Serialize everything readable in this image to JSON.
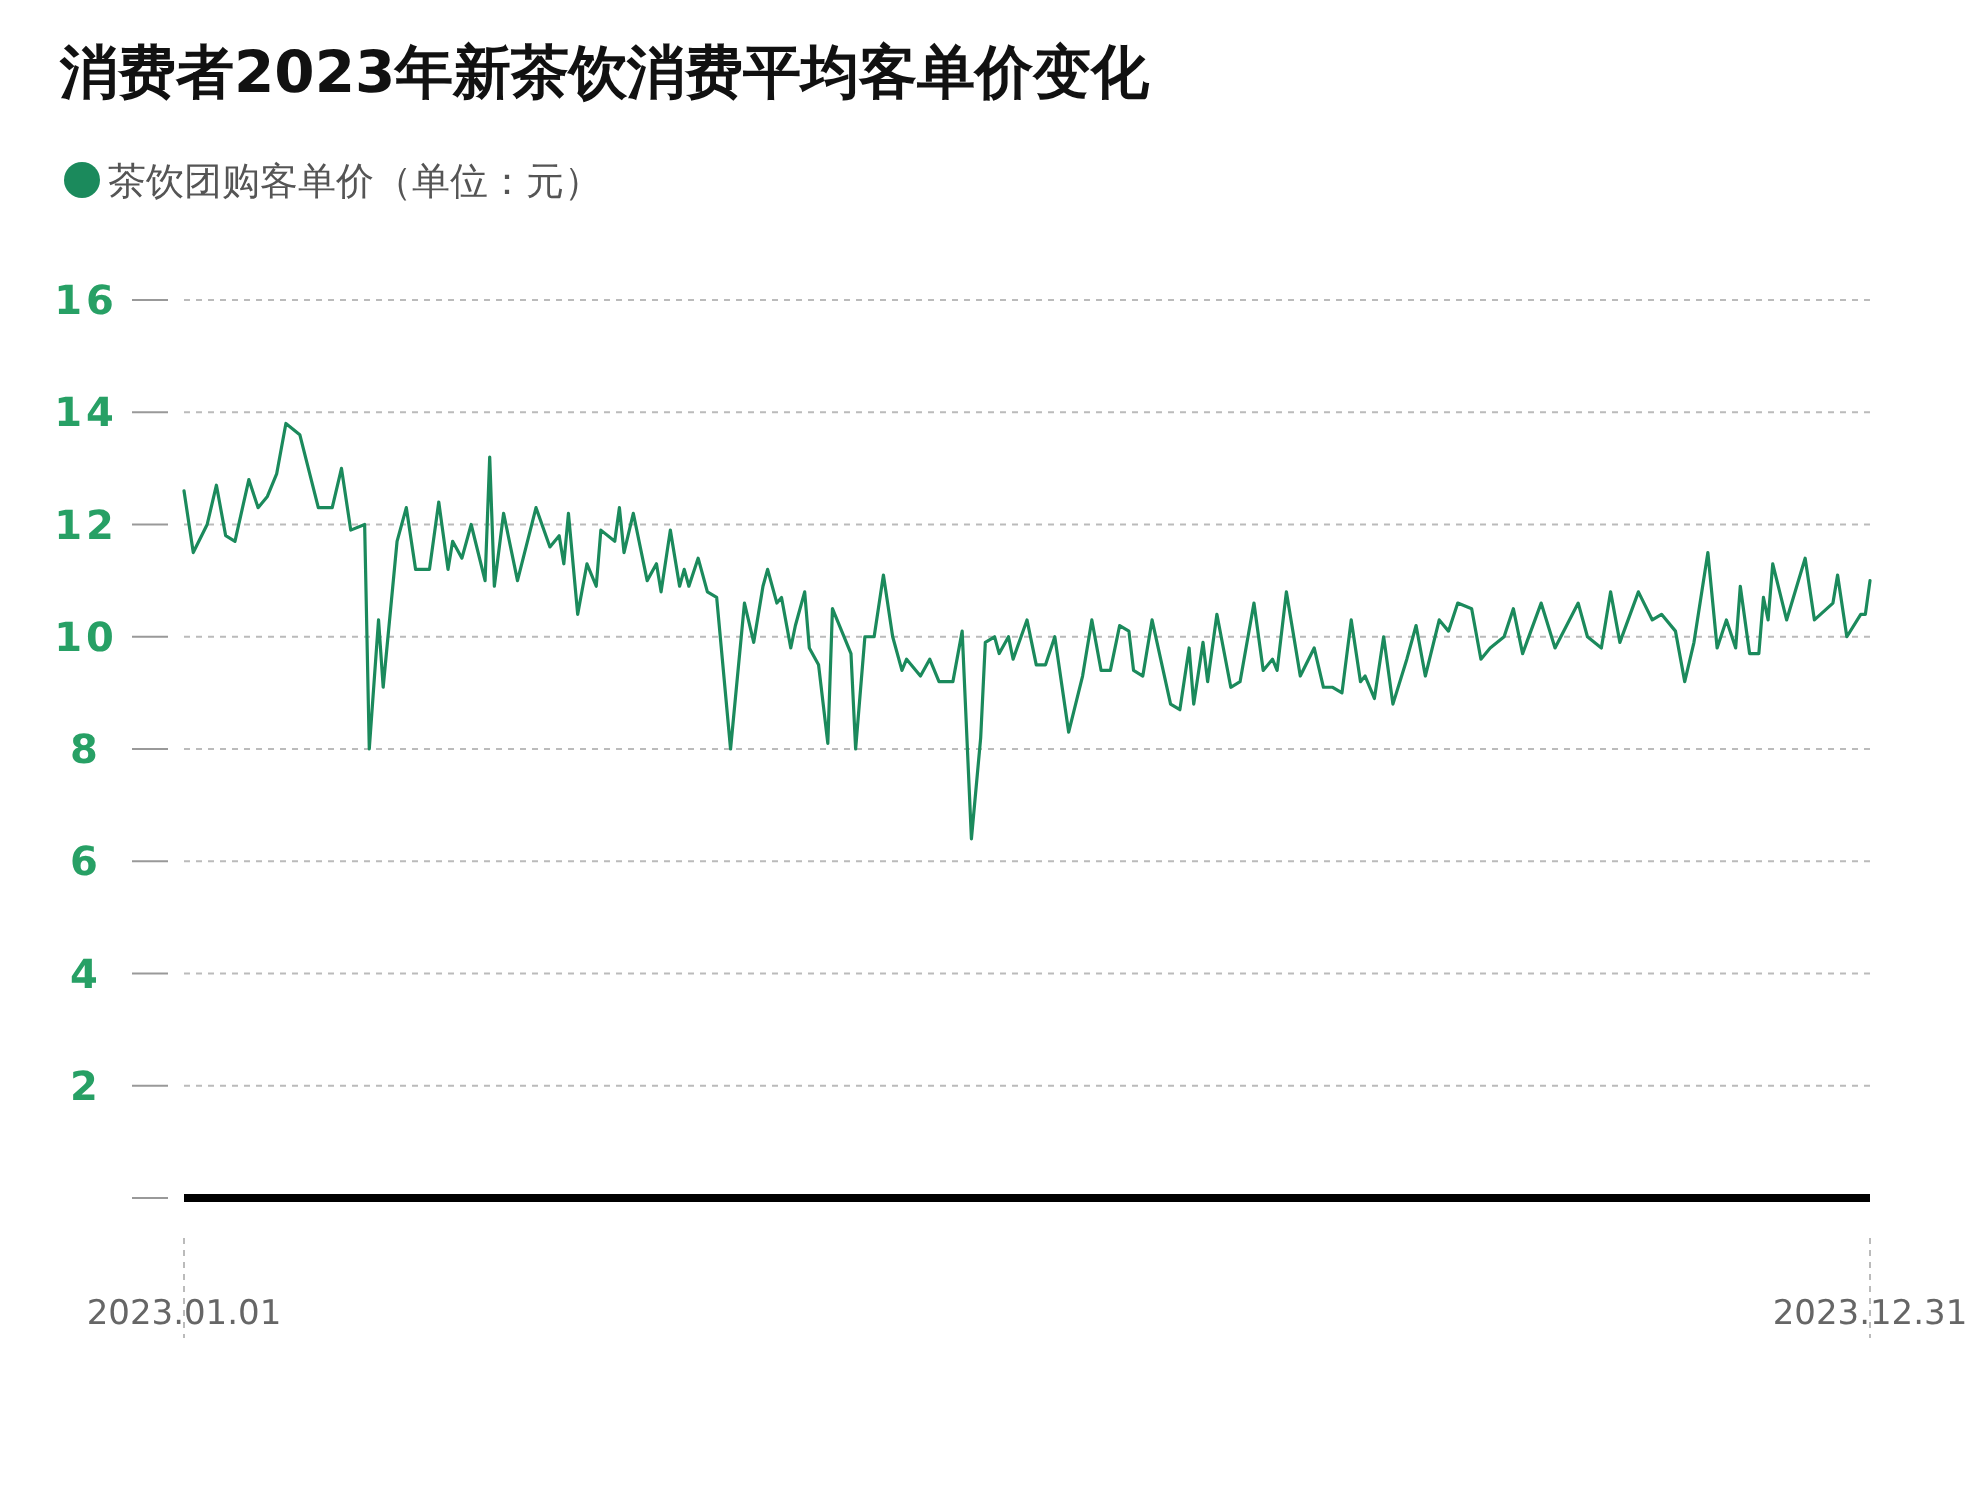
{
  "chart_data": {
    "type": "line",
    "title": "消费者2023年新茶饮消费平均客单价变化",
    "legend": "top left",
    "grid": "y",
    "ylim": [
      0,
      16
    ],
    "yticks": [
      {
        "value": 0,
        "label": null
      },
      2,
      4,
      6,
      8,
      10,
      12,
      14,
      16
    ],
    "xlim": [
      "2023-01-01",
      "2023-12-31"
    ],
    "xticks": [
      {
        "value": "2023-01-01",
        "label": "2023.01.01"
      },
      {
        "value": "2023-12-31",
        "label": "2023.12.31"
      }
    ],
    "x": [
      "2023-01-01",
      "2023-01-03",
      "2023-01-06",
      "2023-01-08",
      "2023-01-10",
      "2023-01-12",
      "2023-01-15",
      "2023-01-17",
      "2023-01-19",
      "2023-01-21",
      "2023-01-23",
      "2023-01-26",
      "2023-01-30",
      "2023-02-02",
      "2023-02-04",
      "2023-02-06",
      "2023-02-09",
      "2023-02-10",
      "2023-02-12",
      "2023-02-13",
      "2023-02-16",
      "2023-02-18",
      "2023-02-20",
      "2023-02-23",
      "2023-02-25",
      "2023-02-27",
      "2023-02-28",
      "2023-03-02",
      "2023-03-04",
      "2023-03-07",
      "2023-03-08",
      "2023-03-09",
      "2023-03-11",
      "2023-03-14",
      "2023-03-18",
      "2023-03-21",
      "2023-03-23",
      "2023-03-24",
      "2023-03-25",
      "2023-03-27",
      "2023-03-29",
      "2023-03-31",
      "2023-04-01",
      "2023-04-04",
      "2023-04-05",
      "2023-04-06",
      "2023-04-08",
      "2023-04-11",
      "2023-04-13",
      "2023-04-14",
      "2023-04-16",
      "2023-04-18",
      "2023-04-19",
      "2023-04-20",
      "2023-04-22",
      "2023-04-24",
      "2023-04-26",
      "2023-04-29",
      "2023-05-02",
      "2023-05-04",
      "2023-05-06",
      "2023-05-07",
      "2023-05-09",
      "2023-05-10",
      "2023-05-12",
      "2023-05-13",
      "2023-05-15",
      "2023-05-16",
      "2023-05-18",
      "2023-05-20",
      "2023-05-21",
      "2023-05-23",
      "2023-05-25",
      "2023-05-26",
      "2023-05-28",
      "2023-05-30",
      "2023-06-01",
      "2023-06-03",
      "2023-06-05",
      "2023-06-06",
      "2023-06-09",
      "2023-06-11",
      "2023-06-13",
      "2023-06-16",
      "2023-06-18",
      "2023-06-20",
      "2023-06-22",
      "2023-06-23",
      "2023-06-25",
      "2023-06-26",
      "2023-06-28",
      "2023-06-29",
      "2023-07-02",
      "2023-07-04",
      "2023-07-06",
      "2023-07-08",
      "2023-07-11",
      "2023-07-14",
      "2023-07-16",
      "2023-07-18",
      "2023-07-20",
      "2023-07-22",
      "2023-07-24",
      "2023-07-25",
      "2023-07-27",
      "2023-07-29",
      "2023-08-02",
      "2023-08-04",
      "2023-08-06",
      "2023-08-07",
      "2023-08-09",
      "2023-08-10",
      "2023-08-12",
      "2023-08-15",
      "2023-08-17",
      "2023-08-20",
      "2023-08-22",
      "2023-08-24",
      "2023-08-25",
      "2023-08-27",
      "2023-08-30",
      "2023-09-02",
      "2023-09-04",
      "2023-09-06",
      "2023-09-08",
      "2023-09-10",
      "2023-09-12",
      "2023-09-13",
      "2023-09-15",
      "2023-09-17",
      "2023-09-19",
      "2023-09-22",
      "2023-09-24",
      "2023-09-26",
      "2023-09-29",
      "2023-10-01",
      "2023-10-03",
      "2023-10-06",
      "2023-10-08",
      "2023-10-10",
      "2023-10-13",
      "2023-10-15",
      "2023-10-17",
      "2023-10-21",
      "2023-10-24",
      "2023-10-29",
      "2023-10-31",
      "2023-11-03",
      "2023-11-05",
      "2023-11-07",
      "2023-11-11",
      "2023-11-14",
      "2023-11-16",
      "2023-11-19",
      "2023-11-21",
      "2023-11-23",
      "2023-11-26",
      "2023-11-28",
      "2023-11-30",
      "2023-12-02",
      "2023-12-03",
      "2023-12-05",
      "2023-12-07",
      "2023-12-08",
      "2023-12-09",
      "2023-12-10",
      "2023-12-13",
      "2023-12-17",
      "2023-12-19",
      "2023-12-23",
      "2023-12-24",
      "2023-12-26",
      "2023-12-29",
      "2023-12-30",
      "2023-12-31"
    ],
    "series": [
      {
        "name": "茶饮团购客单价（单位：元）",
        "color": "#1b8a5c",
        "values": [
          12.6,
          11.5,
          12.0,
          12.7,
          11.8,
          11.7,
          12.8,
          12.3,
          12.5,
          12.9,
          13.8,
          13.6,
          12.3,
          12.3,
          13.0,
          11.9,
          12.0,
          8.0,
          10.3,
          9.1,
          11.7,
          12.3,
          11.2,
          11.2,
          12.4,
          11.2,
          11.7,
          11.4,
          12.0,
          11.0,
          13.2,
          10.9,
          12.2,
          11.0,
          12.3,
          11.6,
          11.8,
          11.3,
          12.2,
          10.4,
          11.3,
          10.9,
          11.9,
          11.7,
          12.3,
          11.5,
          12.2,
          11.0,
          11.3,
          10.8,
          11.9,
          10.9,
          11.2,
          10.9,
          11.4,
          10.8,
          10.7,
          8.0,
          10.6,
          9.9,
          10.9,
          11.2,
          10.6,
          10.7,
          9.8,
          10.2,
          10.8,
          9.8,
          9.5,
          8.1,
          10.5,
          10.1,
          9.7,
          8.0,
          10.0,
          10.0,
          11.1,
          10.0,
          9.4,
          9.6,
          9.3,
          9.6,
          9.2,
          9.2,
          10.1,
          6.4,
          8.2,
          9.9,
          10.0,
          9.7,
          10.0,
          9.6,
          10.3,
          9.5,
          9.5,
          10.0,
          8.3,
          9.3,
          10.3,
          9.4,
          9.4,
          10.2,
          10.1,
          9.4,
          9.3,
          10.3,
          8.8,
          8.7,
          9.8,
          8.8,
          9.9,
          9.2,
          10.4,
          9.1,
          9.2,
          10.6,
          9.4,
          9.6,
          9.4,
          10.8,
          9.3,
          9.8,
          9.1,
          9.1,
          9.0,
          10.3,
          9.2,
          9.3,
          8.9,
          10.0,
          8.8,
          9.6,
          10.2,
          9.3,
          10.3,
          10.1,
          10.6,
          10.5,
          9.6,
          9.8,
          10.0,
          10.5,
          9.7,
          10.6,
          9.8,
          10.6,
          10.0,
          9.8,
          10.8,
          9.9,
          10.8,
          10.3,
          10.4,
          10.1,
          9.2,
          9.9,
          11.5,
          9.8,
          10.3,
          9.8,
          10.9,
          9.7,
          9.7,
          10.7,
          10.3,
          11.3,
          10.3,
          11.4,
          10.3,
          10.6,
          11.1,
          10.0,
          10.4,
          10.4,
          11.0
        ]
      }
    ]
  }
}
